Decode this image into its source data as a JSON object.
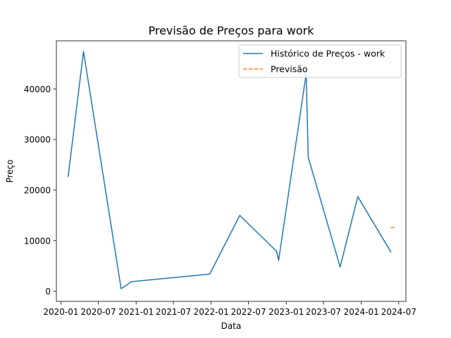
{
  "chart_data": {
    "type": "line",
    "title": "Previsão de Preços para work",
    "xlabel": "Data",
    "ylabel": "Preço",
    "xlim": [
      "2019-12-10",
      "2024-08-05"
    ],
    "ylim": [
      -2000,
      49500
    ],
    "x_ticks": [
      {
        "date": "2020-01-01",
        "label": "2020-01"
      },
      {
        "date": "2020-07-01",
        "label": "2020-07"
      },
      {
        "date": "2021-01-01",
        "label": "2021-01"
      },
      {
        "date": "2021-07-01",
        "label": "2021-07"
      },
      {
        "date": "2022-01-01",
        "label": "2022-01"
      },
      {
        "date": "2022-07-01",
        "label": "2022-07"
      },
      {
        "date": "2023-01-01",
        "label": "2023-01"
      },
      {
        "date": "2023-07-01",
        "label": "2023-07"
      },
      {
        "date": "2024-01-01",
        "label": "2024-01"
      },
      {
        "date": "2024-07-01",
        "label": "2024-07"
      }
    ],
    "y_ticks": [
      {
        "value": 0,
        "label": "0"
      },
      {
        "value": 10000,
        "label": "10000"
      },
      {
        "value": 20000,
        "label": "20000"
      },
      {
        "value": 30000,
        "label": "30000"
      },
      {
        "value": 40000,
        "label": "40000"
      }
    ],
    "grid": false,
    "legend_position": "top-right",
    "series": [
      {
        "name": "Histórico de Preços - work",
        "color": "#1f77b4",
        "style": "solid",
        "points": [
          {
            "x": "2020-02-05",
            "y": 22600
          },
          {
            "x": "2020-04-20",
            "y": 47400
          },
          {
            "x": "2020-10-20",
            "y": 500
          },
          {
            "x": "2020-12-10",
            "y": 1900
          },
          {
            "x": "2021-12-25",
            "y": 3400
          },
          {
            "x": "2022-05-20",
            "y": 15000
          },
          {
            "x": "2022-11-15",
            "y": 7900
          },
          {
            "x": "2022-11-25",
            "y": 6100
          },
          {
            "x": "2023-04-08",
            "y": 43000
          },
          {
            "x": "2023-04-18",
            "y": 26500
          },
          {
            "x": "2023-09-20",
            "y": 4800
          },
          {
            "x": "2023-12-15",
            "y": 18700
          },
          {
            "x": "2024-05-25",
            "y": 7700
          }
        ]
      },
      {
        "name": "Previsão",
        "color": "#ff7f0e",
        "style": "dashed",
        "points": [
          {
            "x": "2024-05-25",
            "y": 12600
          },
          {
            "x": "2024-06-10",
            "y": 12600
          }
        ]
      }
    ]
  }
}
